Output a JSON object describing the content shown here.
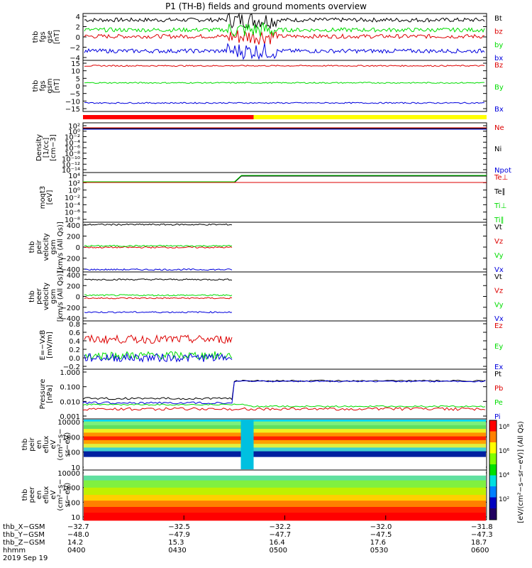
{
  "title": "P1 (TH-B) fields and ground moments overview",
  "colors": {
    "black": "#000000",
    "red": "#dd0000",
    "green": "#00dd00",
    "blue": "#0000dd",
    "yellow": "#ffff00"
  },
  "chart_data": [
    {
      "type": "line",
      "id": "fgs",
      "ylabel": [
        "thb",
        "fgs",
        "gse",
        "[nT]"
      ],
      "yticks": [
        "4",
        "2",
        "0",
        "−2",
        "−4"
      ],
      "ylim": [
        -4,
        4
      ],
      "series": [
        {
          "name": "Bt",
          "color": "black",
          "level": 2.9
        },
        {
          "name": "bz",
          "color": "red",
          "level": 0.1
        },
        {
          "name": "by",
          "color": "green",
          "level": 1.2
        },
        {
          "name": "bx",
          "color": "blue",
          "level": -2.4
        }
      ]
    },
    {
      "type": "line",
      "id": "fgs_gsm",
      "ylabel": [
        "thb",
        "fgs",
        "gsm",
        "[nT]"
      ],
      "yticks": [
        "15",
        "10",
        "5",
        "0",
        "−5",
        "−10",
        "−15"
      ],
      "ylim": [
        -18,
        15
      ],
      "series": [
        {
          "name": "Bz",
          "color": "red",
          "level": 11.5
        },
        {
          "name": "By",
          "color": "green",
          "level": 0.5
        },
        {
          "name": "Bx",
          "color": "blue",
          "level": -12.5
        }
      ]
    },
    {
      "type": "line",
      "id": "density",
      "ylabel": [
        "Density",
        "[1/cc]",
        "[cm−3]"
      ],
      "yticks": [
        "10²",
        "10⁰",
        "10⁻²",
        "10⁻⁴",
        "10⁻⁶",
        "10⁻⁸",
        "10⁻¹⁰",
        "10⁻¹²",
        "10⁻¹⁴"
      ],
      "series": [
        {
          "name": "Ne",
          "color": "red"
        },
        {
          "name": "Ni",
          "color": "black"
        },
        {
          "name": "Npot",
          "color": "blue"
        }
      ]
    },
    {
      "type": "line",
      "id": "temp",
      "ylabel": [
        "moqt3",
        "[eV]"
      ],
      "yticks": [
        "10⁴",
        "10²",
        "10⁰",
        "10⁻²",
        "10⁻⁴",
        "10⁻⁶",
        "10⁻⁸"
      ],
      "series": [
        {
          "name": "Te⊥",
          "color": "red"
        },
        {
          "name": "Te∥",
          "color": "black"
        },
        {
          "name": "Ti⊥",
          "color": "green"
        },
        {
          "name": "Ti∥",
          "color": "green"
        }
      ]
    },
    {
      "type": "line",
      "id": "peir_vel",
      "ylabel": [
        "thb",
        "peir",
        "velocity",
        "gsm",
        "[km/s (All Qs)]"
      ],
      "yticks": [
        "400",
        "200",
        "0",
        "−200",
        "−400"
      ],
      "ylim": [
        -420,
        420
      ],
      "series": [
        {
          "name": "Vt",
          "color": "black",
          "level": 380
        },
        {
          "name": "Vz",
          "color": "red",
          "level": -5
        },
        {
          "name": "Vy",
          "color": "green",
          "level": 20
        },
        {
          "name": "Vx",
          "color": "blue",
          "level": -380
        }
      ]
    },
    {
      "type": "line",
      "id": "peer_vel",
      "ylabel": [
        "thb",
        "peer",
        "velocity",
        "gsm",
        "[km/s (All Qs)]"
      ],
      "yticks": [
        "400",
        "200",
        "0",
        "−200",
        "−400"
      ],
      "ylim": [
        -420,
        420
      ],
      "series": [
        {
          "name": "Vt",
          "color": "black",
          "level": 290
        },
        {
          "name": "Vz",
          "color": "red",
          "level": -30
        },
        {
          "name": "Vy",
          "color": "green",
          "level": 20
        },
        {
          "name": "Vx",
          "color": "blue",
          "level": -270
        }
      ]
    },
    {
      "type": "line",
      "id": "efield",
      "ylabel": [
        "E=−VxB",
        "[mV/m]"
      ],
      "yticks": [
        "0.8",
        "0.6",
        "0.4",
        "0.2",
        "0.0",
        "−0.2"
      ],
      "ylim": [
        -0.25,
        0.8
      ],
      "series": [
        {
          "name": "Ez",
          "color": "red",
          "level": 0.4
        },
        {
          "name": "Ey",
          "color": "green",
          "level": 0.05
        },
        {
          "name": "Ex",
          "color": "blue",
          "level": 0.0
        }
      ]
    },
    {
      "type": "line",
      "id": "pressure",
      "ylabel": [
        "Pressure",
        "[nPa]"
      ],
      "yticks": [
        "1.000",
        "0.100",
        "0.010",
        "0.001"
      ],
      "series": [
        {
          "name": "Pt",
          "color": "black"
        },
        {
          "name": "Pb",
          "color": "red"
        },
        {
          "name": "Pe",
          "color": "green"
        },
        {
          "name": "Pi",
          "color": "blue"
        }
      ]
    },
    {
      "type": "heatmap",
      "id": "peir_eflux",
      "ylabel": [
        "thb",
        "peir",
        "en",
        "eflux",
        "eV",
        "(cm²−s−",
        "sr−eV)"
      ],
      "yticks": [
        "10000",
        "1000",
        "100",
        "10"
      ]
    },
    {
      "type": "heatmap",
      "id": "peer_eflux",
      "ylabel": [
        "thb",
        "peer",
        "en",
        "eflux",
        "eV",
        "(cm²−s−",
        "sr−eV)"
      ],
      "yticks": [
        "10000",
        "1000",
        "100",
        "10"
      ]
    }
  ],
  "colorbar": {
    "label": "[eV/(cm²−s−sr−eV)] (All Qs)",
    "ticks": [
      "10⁸",
      "10⁶",
      "10⁴",
      "10²"
    ]
  },
  "x_axis": {
    "rows": [
      {
        "label": "thb_X−GSM",
        "values": [
          "−32.7",
          "−32.5",
          "−32.2",
          "−32.0",
          "−31.8"
        ]
      },
      {
        "label": "thb_Y−GSM",
        "values": [
          "−48.0",
          "−47.9",
          "−47.7",
          "−47.5",
          "−47.3"
        ]
      },
      {
        "label": "thb_Z−GSM",
        "values": [
          "14.2",
          "15.3",
          "16.4",
          "17.6",
          "18.7"
        ]
      },
      {
        "label": "hhmm",
        "values": [
          "0400",
          "0430",
          "0500",
          "0530",
          "0600"
        ]
      }
    ],
    "date": "2019 Sep 19"
  }
}
